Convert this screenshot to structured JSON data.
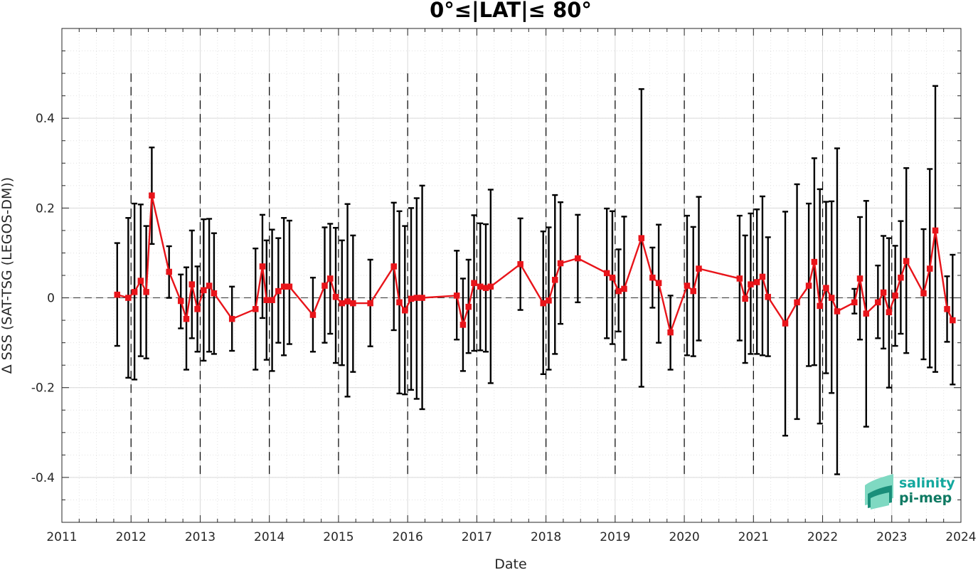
{
  "chart_data": {
    "type": "line",
    "title": "0°≤|LAT|≤ 80°",
    "xlabel": "Date",
    "ylabel": "Δ SSS (SAT-TSG (LEGOS-DM))",
    "xlim": [
      2011,
      2024
    ],
    "ylim": [
      -0.5,
      0.6
    ],
    "x_ticks": [
      2011,
      2012,
      2013,
      2014,
      2015,
      2016,
      2017,
      2018,
      2019,
      2020,
      2021,
      2022,
      2023,
      2024
    ],
    "x_tick_labels": [
      "2011",
      "2012",
      "2013",
      "2014",
      "2015",
      "2016",
      "2017",
      "2018",
      "2019",
      "2020",
      "2021",
      "2022",
      "2023",
      "2024"
    ],
    "y_ticks": [
      -0.4,
      -0.2,
      0,
      0.2,
      0.4
    ],
    "y_tick_labels": [
      "-0.4",
      "-0.2",
      "0",
      "0.2",
      "0.4"
    ],
    "year_boundaries": [
      2012,
      2013,
      2014,
      2015,
      2016,
      2017,
      2018,
      2019,
      2020,
      2021,
      2022,
      2023
    ],
    "grid": true,
    "colors": {
      "series": "#e8141a",
      "errorbars": "#000000",
      "frame": "#262626",
      "grid": "#d9d9d9"
    },
    "series": [
      {
        "x": [
          2011.8,
          2011.96,
          2012.05,
          2012.14,
          2012.22,
          2012.3,
          2012.55,
          2012.72,
          2012.8,
          2012.88,
          2012.96,
          2013.05,
          2013.13,
          2013.2,
          2013.46,
          2013.8,
          2013.9,
          2013.96,
          2014.04,
          2014.13,
          2014.21,
          2014.29,
          2014.63,
          2014.8,
          2014.88,
          2014.96,
          2015.05,
          2015.13,
          2015.21,
          2015.46,
          2015.8,
          2015.88,
          2015.96,
          2016.05,
          2016.13,
          2016.21,
          2016.71,
          2016.8,
          2016.88,
          2016.96,
          2017.05,
          2017.13,
          2017.2,
          2017.63,
          2017.96,
          2018.04,
          2018.13,
          2018.21,
          2018.46,
          2018.88,
          2018.96,
          2019.05,
          2019.13,
          2019.38,
          2019.54,
          2019.63,
          2019.8,
          2020.04,
          2020.13,
          2020.21,
          2020.8,
          2020.88,
          2020.96,
          2021.05,
          2021.13,
          2021.21,
          2021.46,
          2021.63,
          2021.8,
          2021.88,
          2021.96,
          2022.05,
          2022.13,
          2022.21,
          2022.46,
          2022.54,
          2022.63,
          2022.8,
          2022.88,
          2022.96,
          2023.05,
          2023.13,
          2023.21,
          2023.46,
          2023.55,
          2023.63,
          2023.8,
          2023.88
        ],
        "y": [
          0.007,
          0.0,
          0.013,
          0.038,
          0.013,
          0.228,
          0.058,
          -0.007,
          -0.047,
          0.03,
          -0.025,
          0.017,
          0.027,
          0.01,
          -0.047,
          -0.025,
          0.07,
          -0.005,
          -0.005,
          0.015,
          0.025,
          0.025,
          -0.038,
          0.027,
          0.043,
          0.002,
          -0.012,
          -0.008,
          -0.012,
          -0.012,
          0.07,
          -0.01,
          -0.028,
          -0.002,
          0.0,
          0.0,
          0.005,
          -0.06,
          -0.02,
          0.033,
          0.025,
          0.022,
          0.025,
          0.075,
          -0.012,
          -0.006,
          0.04,
          0.077,
          0.088,
          0.055,
          0.045,
          0.015,
          0.02,
          0.133,
          0.045,
          0.033,
          -0.077,
          0.027,
          0.015,
          0.065,
          0.043,
          -0.002,
          0.03,
          0.035,
          0.047,
          0.002,
          -0.057,
          -0.01,
          0.027,
          0.08,
          -0.018,
          0.022,
          0.0,
          -0.03,
          -0.01,
          0.043,
          -0.035,
          -0.01,
          0.012,
          -0.032,
          0.005,
          0.045,
          0.082,
          0.01,
          0.065,
          0.15,
          -0.025,
          -0.05
        ],
        "err_low": [
          -0.107,
          -0.178,
          -0.182,
          -0.13,
          -0.135,
          0.12,
          0.0,
          -0.068,
          -0.16,
          -0.09,
          -0.12,
          -0.14,
          -0.12,
          -0.125,
          -0.118,
          -0.16,
          -0.045,
          -0.138,
          -0.163,
          -0.1,
          -0.128,
          -0.103,
          -0.12,
          -0.1,
          -0.08,
          -0.145,
          -0.15,
          -0.22,
          -0.165,
          -0.108,
          -0.072,
          -0.213,
          -0.215,
          -0.205,
          -0.225,
          -0.248,
          -0.093,
          -0.163,
          -0.123,
          -0.118,
          -0.117,
          -0.12,
          -0.19,
          -0.027,
          -0.17,
          -0.16,
          -0.125,
          -0.058,
          -0.01,
          -0.09,
          -0.103,
          -0.075,
          -0.138,
          -0.198,
          -0.022,
          -0.1,
          -0.16,
          -0.128,
          -0.13,
          -0.095,
          -0.095,
          -0.145,
          -0.125,
          -0.125,
          -0.128,
          -0.13,
          -0.307,
          -0.27,
          -0.152,
          -0.15,
          -0.28,
          -0.168,
          -0.212,
          -0.393,
          -0.035,
          -0.093,
          -0.287,
          -0.09,
          -0.113,
          -0.2,
          -0.107,
          -0.08,
          -0.123,
          -0.137,
          -0.155,
          -0.165,
          -0.098,
          -0.193
        ],
        "err_high": [
          0.122,
          0.178,
          0.21,
          0.208,
          0.16,
          0.335,
          0.115,
          0.052,
          0.068,
          0.15,
          0.07,
          0.175,
          0.176,
          0.144,
          0.025,
          0.11,
          0.185,
          0.128,
          0.152,
          0.133,
          0.178,
          0.172,
          0.045,
          0.157,
          0.165,
          0.156,
          0.128,
          0.209,
          0.139,
          0.085,
          0.212,
          0.193,
          0.16,
          0.2,
          0.222,
          0.25,
          0.105,
          0.043,
          0.085,
          0.184,
          0.166,
          0.164,
          0.241,
          0.177,
          0.148,
          0.157,
          0.229,
          0.213,
          0.185,
          0.199,
          0.193,
          0.108,
          0.181,
          0.465,
          0.112,
          0.163,
          0.005,
          0.183,
          0.158,
          0.225,
          0.183,
          0.139,
          0.188,
          0.197,
          0.226,
          0.135,
          0.192,
          0.253,
          0.21,
          0.311,
          0.242,
          0.214,
          0.215,
          0.333,
          0.02,
          0.18,
          0.216,
          0.072,
          0.138,
          0.133,
          0.116,
          0.171,
          0.289,
          0.153,
          0.287,
          0.472,
          0.048,
          0.096
        ]
      }
    ]
  },
  "logo": {
    "line1": "salinity",
    "line2": "pi-mep",
    "colors": {
      "line1": "#13a89e",
      "line2": "#0f7a63",
      "icon_light": "#7fd9c2",
      "icon_dark": "#1a8f7a"
    }
  }
}
